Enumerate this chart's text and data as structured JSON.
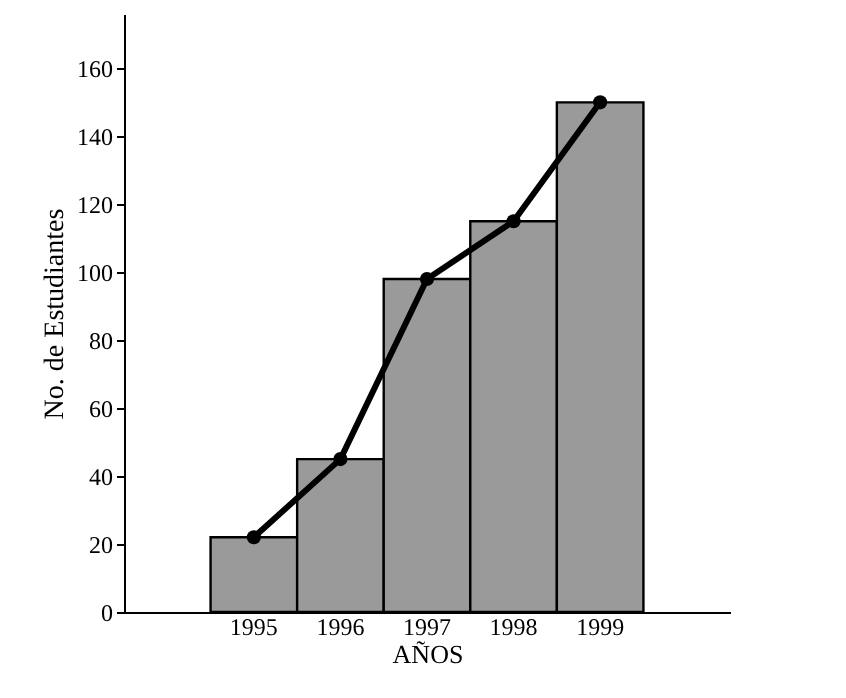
{
  "chart_data": {
    "type": "bar",
    "xlabel": "AÑOS",
    "ylabel": "No. de Estudiantes",
    "categories": [
      "1995",
      "1996",
      "1997",
      "1998",
      "1999"
    ],
    "series": [
      {
        "color": "#9a9a9a",
        "values": [
          22,
          45,
          98,
          115,
          150
        ]
      },
      {
        "type": "line",
        "color": "#000000",
        "marker": "circle",
        "line_style": "solid",
        "values": [
          22,
          45,
          98,
          115,
          150
        ]
      }
    ],
    "ylim": [
      0,
      176
    ],
    "yticks": [
      0,
      20,
      40,
      60,
      80,
      100,
      120,
      140,
      160
    ],
    "grid": false
  }
}
